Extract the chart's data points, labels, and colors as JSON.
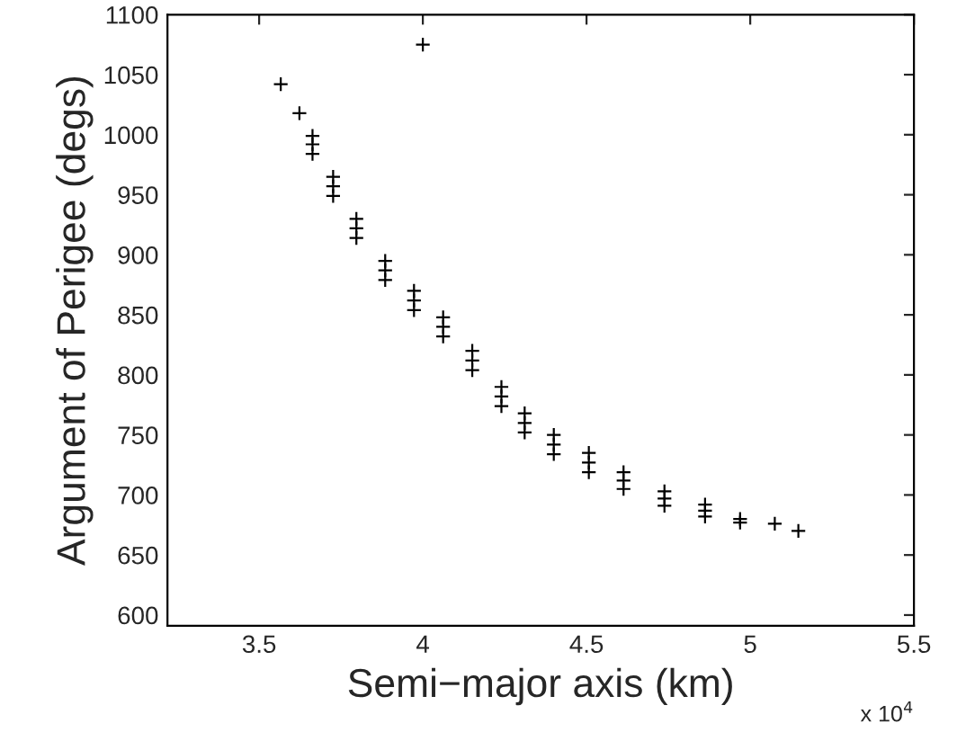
{
  "chart_data": {
    "type": "scatter",
    "xlabel": "Semi−major axis (km)",
    "ylabel": "Argument of Perigee (degs)",
    "annotations": [
      "x 10$^{4}$"
    ],
    "x": [
      3.566,
      4.0,
      3.623,
      3.663,
      3.663,
      3.663,
      3.726,
      3.726,
      3.726,
      3.797,
      3.797,
      3.797,
      3.885,
      3.885,
      3.885,
      3.973,
      3.973,
      3.973,
      4.062,
      4.062,
      4.062,
      4.151,
      4.151,
      4.151,
      4.24,
      4.24,
      4.24,
      4.311,
      4.311,
      4.311,
      4.4,
      4.4,
      4.4,
      4.507,
      4.507,
      4.507,
      4.613,
      4.613,
      4.613,
      4.738,
      4.738,
      4.738,
      4.862,
      4.862,
      4.862,
      4.969,
      4.969,
      5.075,
      5.147
    ],
    "values": [
      1042,
      1075,
      1018,
      992,
      984,
      999,
      957,
      949,
      965,
      922,
      914,
      930,
      887,
      879,
      895,
      862,
      854,
      870,
      840,
      832,
      848,
      812,
      804,
      820,
      782,
      774,
      790,
      760,
      752,
      768,
      742,
      734,
      750,
      727,
      719,
      735,
      712,
      705,
      719,
      697,
      691,
      703,
      687,
      682,
      692,
      680,
      677,
      676,
      670
    ],
    "color": "#000000",
    "marker": "cross",
    "xlim": [
      3.22,
      5.5
    ],
    "ylim": [
      591,
      1100
    ],
    "xticks": [
      3.5,
      4,
      4.5,
      5,
      5.5
    ],
    "yticks": [
      600,
      650,
      700,
      750,
      800,
      850,
      900,
      950,
      1000,
      1050,
      1100
    ]
  }
}
